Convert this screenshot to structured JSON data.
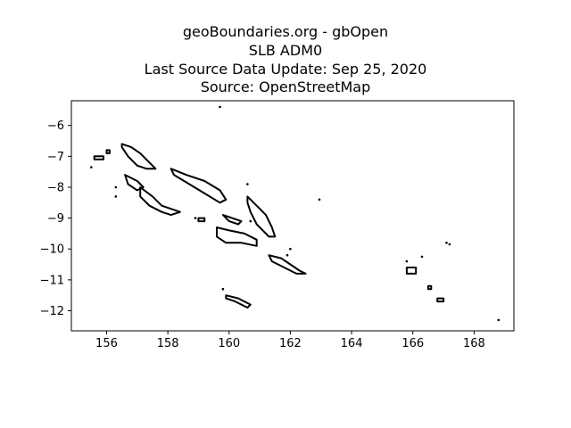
{
  "title": {
    "line1": "geoBoundaries.org - gbOpen",
    "line2": "SLB ADM0",
    "line3": "Last Source Data Update: Sep 25, 2020",
    "line4": "Source: OpenStreetMap"
  },
  "chart_data": {
    "type": "map",
    "xlim": [
      154.85,
      169.3
    ],
    "ylim": [
      -12.65,
      -5.2
    ],
    "xticks": [
      156,
      158,
      160,
      162,
      164,
      166,
      168
    ],
    "yticks": [
      -6,
      -7,
      -8,
      -9,
      -10,
      -11,
      -12
    ],
    "grid": false,
    "outline_color": "#000000",
    "islands": [
      {
        "name": "",
        "points": [
          [
            156.5,
            -6.6
          ],
          [
            156.8,
            -6.7
          ],
          [
            157.1,
            -6.9
          ],
          [
            157.4,
            -7.2
          ],
          [
            157.6,
            -7.4
          ],
          [
            157.3,
            -7.4
          ],
          [
            157.0,
            -7.3
          ],
          [
            156.7,
            -7.0
          ],
          [
            156.5,
            -6.7
          ]
        ]
      },
      {
        "name": "",
        "points": [
          [
            158.1,
            -7.4
          ],
          [
            158.6,
            -7.6
          ],
          [
            159.2,
            -7.8
          ],
          [
            159.7,
            -8.1
          ],
          [
            159.9,
            -8.4
          ],
          [
            159.7,
            -8.5
          ],
          [
            159.2,
            -8.2
          ],
          [
            158.7,
            -7.9
          ],
          [
            158.2,
            -7.6
          ]
        ]
      },
      {
        "name": "",
        "points": [
          [
            160.6,
            -8.3
          ],
          [
            160.9,
            -8.6
          ],
          [
            161.2,
            -8.9
          ],
          [
            161.4,
            -9.3
          ],
          [
            161.5,
            -9.6
          ],
          [
            161.3,
            -9.6
          ],
          [
            160.9,
            -9.2
          ],
          [
            160.7,
            -8.8
          ],
          [
            160.6,
            -8.5
          ]
        ]
      },
      {
        "name": "",
        "points": [
          [
            159.6,
            -9.3
          ],
          [
            160.0,
            -9.4
          ],
          [
            160.5,
            -9.5
          ],
          [
            160.9,
            -9.7
          ],
          [
            160.9,
            -9.9
          ],
          [
            160.4,
            -9.8
          ],
          [
            159.9,
            -9.8
          ],
          [
            159.6,
            -9.6
          ]
        ]
      },
      {
        "name": "",
        "points": [
          [
            161.3,
            -10.2
          ],
          [
            161.7,
            -10.3
          ],
          [
            162.0,
            -10.5
          ],
          [
            162.3,
            -10.7
          ],
          [
            162.5,
            -10.8
          ],
          [
            162.2,
            -10.8
          ],
          [
            161.8,
            -10.6
          ],
          [
            161.4,
            -10.4
          ]
        ]
      },
      {
        "name": "",
        "points": [
          [
            157.1,
            -8.0
          ],
          [
            157.5,
            -8.3
          ],
          [
            157.8,
            -8.6
          ],
          [
            158.1,
            -8.7
          ],
          [
            158.4,
            -8.8
          ],
          [
            158.1,
            -8.9
          ],
          [
            157.8,
            -8.8
          ],
          [
            157.4,
            -8.6
          ],
          [
            157.1,
            -8.3
          ]
        ]
      },
      {
        "name": "",
        "points": [
          [
            156.6,
            -7.6
          ],
          [
            157.0,
            -7.8
          ],
          [
            157.2,
            -8.0
          ],
          [
            157.0,
            -8.1
          ],
          [
            156.7,
            -7.9
          ]
        ]
      },
      {
        "name": "",
        "points": [
          [
            155.6,
            -7.0
          ],
          [
            155.9,
            -7.0
          ],
          [
            155.9,
            -7.1
          ],
          [
            155.6,
            -7.1
          ]
        ]
      },
      {
        "name": "",
        "points": [
          [
            156.0,
            -6.8
          ],
          [
            156.1,
            -6.8
          ],
          [
            156.1,
            -6.9
          ],
          [
            156.0,
            -6.9
          ]
        ]
      },
      {
        "name": "",
        "points": [
          [
            159.8,
            -8.9
          ],
          [
            160.1,
            -9.0
          ],
          [
            160.4,
            -9.1
          ],
          [
            160.3,
            -9.2
          ],
          [
            160.0,
            -9.1
          ]
        ]
      },
      {
        "name": "",
        "points": [
          [
            159.0,
            -9.0
          ],
          [
            159.2,
            -9.0
          ],
          [
            159.2,
            -9.1
          ],
          [
            159.0,
            -9.1
          ]
        ]
      },
      {
        "name": "",
        "points": [
          [
            159.9,
            -11.5
          ],
          [
            160.3,
            -11.6
          ],
          [
            160.7,
            -11.8
          ],
          [
            160.6,
            -11.9
          ],
          [
            160.2,
            -11.7
          ],
          [
            159.9,
            -11.6
          ]
        ]
      },
      {
        "name": "",
        "points": [
          [
            165.8,
            -10.6
          ],
          [
            166.1,
            -10.6
          ],
          [
            166.1,
            -10.8
          ],
          [
            165.8,
            -10.8
          ]
        ]
      },
      {
        "name": "",
        "points": [
          [
            166.8,
            -11.6
          ],
          [
            167.0,
            -11.6
          ],
          [
            167.0,
            -11.7
          ],
          [
            166.8,
            -11.7
          ]
        ]
      },
      {
        "name": "",
        "points": [
          [
            166.5,
            -11.2
          ],
          [
            166.6,
            -11.2
          ],
          [
            166.6,
            -11.3
          ],
          [
            166.5,
            -11.3
          ]
        ]
      }
    ],
    "dots": [
      [
        159.7,
        -5.4
      ],
      [
        155.5,
        -7.35
      ],
      [
        156.3,
        -8.0
      ],
      [
        156.3,
        -8.3
      ],
      [
        158.9,
        -9.0
      ],
      [
        160.6,
        -7.9
      ],
      [
        162.0,
        -10.0
      ],
      [
        162.95,
        -8.4
      ],
      [
        165.8,
        -10.4
      ],
      [
        166.3,
        -10.25
      ],
      [
        167.1,
        -9.8
      ],
      [
        167.2,
        -9.85
      ],
      [
        168.8,
        -12.3
      ],
      [
        159.8,
        -11.3
      ],
      [
        160.7,
        -9.1
      ],
      [
        161.9,
        -10.2
      ]
    ]
  }
}
